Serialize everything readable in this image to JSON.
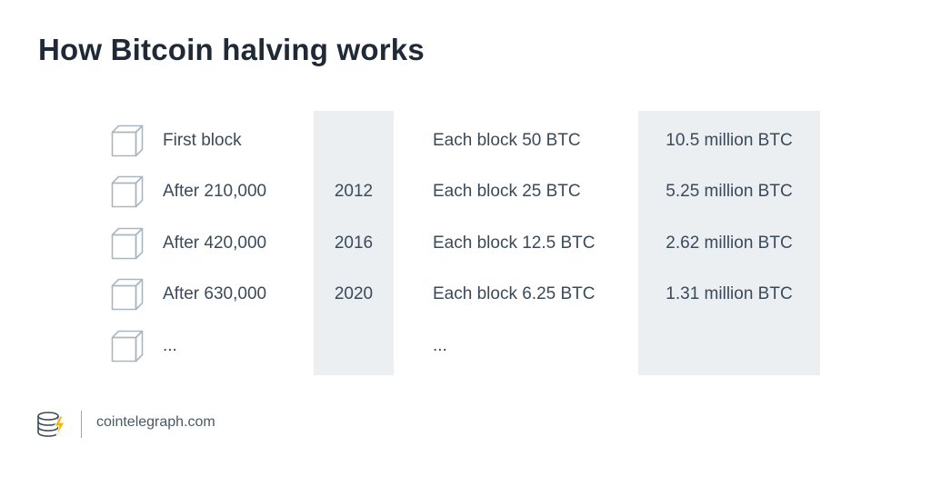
{
  "title": "How Bitcoin halving works",
  "rows": [
    {
      "label": "First block",
      "year": "",
      "reward": "Each block 50 BTC",
      "total": "10.5 million BTC"
    },
    {
      "label": "After 210,000",
      "year": "2012",
      "reward": "Each block 25 BTC",
      "total": "5.25 million BTC"
    },
    {
      "label": "After 420,000",
      "year": "2016",
      "reward": "Each block 12.5 BTC",
      "total": "2.62 million BTC"
    },
    {
      "label": "After 630,000",
      "year": "2020",
      "reward": "Each block 6.25 BTC",
      "total": "1.31 million BTC"
    },
    {
      "label": "...",
      "year": "",
      "reward": "...",
      "total": ""
    }
  ],
  "footer": {
    "site": "cointelegraph.com",
    "logo_icon": "cointelegraph-logo-icon"
  },
  "colors": {
    "title": "#1f2a36",
    "text": "#3b4a5a",
    "column_background": "#eceff1",
    "cube_stroke": "#a9b7c2",
    "logo_accent": "#f2b705"
  }
}
